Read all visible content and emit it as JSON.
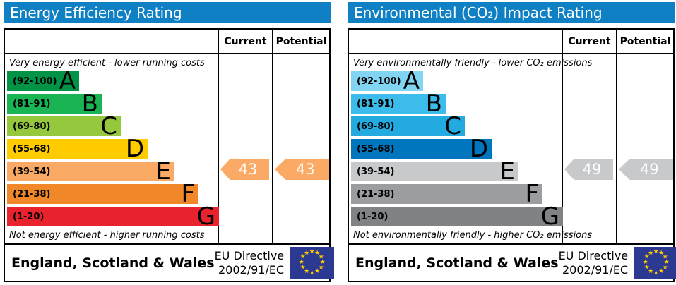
{
  "chart_data": [
    {
      "type": "bar",
      "title": "Energy Efficiency Rating",
      "categories": [
        "A (92-100)",
        "B (81-91)",
        "C (69-80)",
        "D (55-68)",
        "E (39-54)",
        "F (21-38)",
        "G (1-20)"
      ],
      "values": [
        102,
        134,
        161,
        199,
        237,
        271,
        300
      ],
      "bands": [
        {
          "letter": "A",
          "range": [
            92,
            100
          ]
        },
        {
          "letter": "B",
          "range": [
            81,
            91
          ]
        },
        {
          "letter": "C",
          "range": [
            69,
            80
          ]
        },
        {
          "letter": "D",
          "range": [
            55,
            68
          ]
        },
        {
          "letter": "E",
          "range": [
            39,
            54
          ]
        },
        {
          "letter": "F",
          "range": [
            21,
            38
          ]
        },
        {
          "letter": "G",
          "range": [
            1,
            20
          ]
        }
      ],
      "current": 43,
      "potential": 43,
      "current_band": "E",
      "potential_band": "E",
      "top_label": "Very energy efficient - lower running costs",
      "bottom_label": "Not energy efficient - higher running costs",
      "legend_position": "none",
      "grid": false
    },
    {
      "type": "bar",
      "title": "Environmental (CO₂) Impact Rating",
      "categories": [
        "A (92-100)",
        "B (81-91)",
        "C (69-80)",
        "D (55-68)",
        "E (39-54)",
        "F (21-38)",
        "G (1-20)"
      ],
      "values": [
        102,
        134,
        161,
        199,
        237,
        271,
        300
      ],
      "bands": [
        {
          "letter": "A",
          "range": [
            92,
            100
          ]
        },
        {
          "letter": "B",
          "range": [
            81,
            91
          ]
        },
        {
          "letter": "C",
          "range": [
            69,
            80
          ]
        },
        {
          "letter": "D",
          "range": [
            55,
            68
          ]
        },
        {
          "letter": "E",
          "range": [
            39,
            54
          ]
        },
        {
          "letter": "F",
          "range": [
            21,
            38
          ]
        },
        {
          "letter": "G",
          "range": [
            1,
            20
          ]
        }
      ],
      "current": 49,
      "potential": 49,
      "current_band": "E",
      "potential_band": "E",
      "top_label": "Very environmentally friendly - lower CO₂ emissions",
      "bottom_label": "Not environmentally friendly - higher CO₂ emissions",
      "legend_position": "none",
      "grid": false
    }
  ],
  "panels": [
    {
      "title": "Energy Efficiency Rating",
      "title_bg": "#1080c4",
      "header": {
        "current": "Current",
        "potential": "Potential"
      },
      "top_note": "Very energy efficient - lower running costs",
      "bottom_note": "Not energy efficient - higher running costs",
      "bands": [
        {
          "range": "(92-100)",
          "letter": "A",
          "color": "#029347"
        },
        {
          "range": "(81-91)",
          "letter": "B",
          "color": "#1ab455"
        },
        {
          "range": "(69-80)",
          "letter": "C",
          "color": "#95c83d"
        },
        {
          "range": "(55-68)",
          "letter": "D",
          "color": "#ffcc00"
        },
        {
          "range": "(39-54)",
          "letter": "E",
          "color": "#faaa64"
        },
        {
          "range": "(21-38)",
          "letter": "F",
          "color": "#f08728"
        },
        {
          "range": "(1-20)",
          "letter": "G",
          "color": "#e9232d"
        }
      ],
      "current": {
        "value": "43",
        "color": "#faaa64"
      },
      "potential": {
        "value": "43",
        "color": "#faaa64"
      },
      "footer": {
        "region": "England, Scotland & Wales",
        "directive_line1": "EU Directive",
        "directive_line2": "2002/91/EC"
      }
    },
    {
      "title": "Environmental (CO₂) Impact Rating",
      "title_bg": "#1080c4",
      "header": {
        "current": "Current",
        "potential": "Potential"
      },
      "top_note": "Very environmentally friendly - lower CO₂ emissions",
      "bottom_note": "Not environmentally friendly - higher CO₂ emissions",
      "bands": [
        {
          "range": "(92-100)",
          "letter": "A",
          "color": "#82d5f2"
        },
        {
          "range": "(81-91)",
          "letter": "B",
          "color": "#3cbceb"
        },
        {
          "range": "(69-80)",
          "letter": "C",
          "color": "#23aae0"
        },
        {
          "range": "(55-68)",
          "letter": "D",
          "color": "#0076be"
        },
        {
          "range": "(39-54)",
          "letter": "E",
          "color": "#c8c9cb"
        },
        {
          "range": "(21-38)",
          "letter": "F",
          "color": "#9b9da0"
        },
        {
          "range": "(1-20)",
          "letter": "G",
          "color": "#808285"
        }
      ],
      "current": {
        "value": "49",
        "color": "#c8c9cb"
      },
      "potential": {
        "value": "49",
        "color": "#c8c9cb"
      },
      "footer": {
        "region": "England, Scotland & Wales",
        "directive_line1": "EU Directive",
        "directive_line2": "2002/91/EC"
      }
    }
  ],
  "eu_flag": {
    "bg": "#2b3990",
    "star_color": "#ffcc00",
    "star_glyph": "★"
  }
}
